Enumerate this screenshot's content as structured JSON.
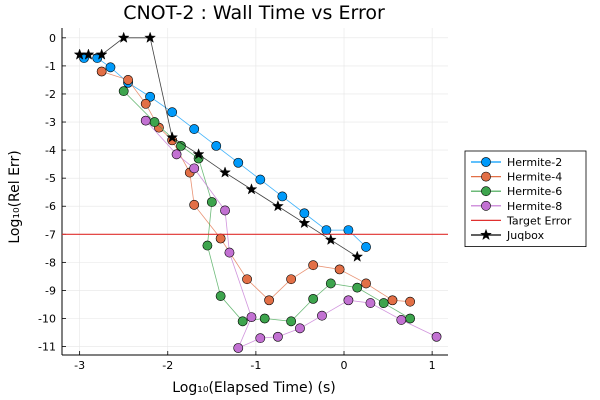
{
  "chart_data": {
    "type": "line",
    "title": "CNOT-2 : Wall Time vs Error",
    "xlabel": "Log₁₀(Elapsed Time) (s)",
    "ylabel": "Log₁₀(Rel Err)",
    "xlim": [
      -3.2,
      1.18
    ],
    "ylim": [
      -11.3,
      0.35
    ],
    "xticks": [
      -3,
      -2,
      -1,
      0,
      1
    ],
    "yticks": [
      0,
      -1,
      -2,
      -3,
      -4,
      -5,
      -6,
      -7,
      -8,
      -9,
      -10,
      -11
    ],
    "grid": true,
    "legend_position": "right",
    "series": [
      {
        "name": "Hermite-2",
        "color": "#009AFA",
        "marker": "circle",
        "points": [
          [
            -2.95,
            -0.72
          ],
          [
            -2.8,
            -0.72
          ],
          [
            -2.65,
            -1.05
          ],
          [
            -2.45,
            -1.6
          ],
          [
            -2.2,
            -2.1
          ],
          [
            -1.95,
            -2.65
          ],
          [
            -1.7,
            -3.25
          ],
          [
            -1.45,
            -3.85
          ],
          [
            -1.2,
            -4.45
          ],
          [
            -0.95,
            -5.05
          ],
          [
            -0.7,
            -5.65
          ],
          [
            -0.45,
            -6.25
          ],
          [
            -0.2,
            -6.85
          ],
          [
            0.05,
            -6.85
          ],
          [
            0.25,
            -7.45
          ]
        ]
      },
      {
        "name": "Hermite-4",
        "color": "#E26F46",
        "marker": "circle",
        "points": [
          [
            -2.75,
            -1.2
          ],
          [
            -2.45,
            -1.5
          ],
          [
            -2.25,
            -2.35
          ],
          [
            -2.1,
            -3.2
          ],
          [
            -1.95,
            -3.65
          ],
          [
            -1.75,
            -4.8
          ],
          [
            -1.7,
            -5.95
          ],
          [
            -1.4,
            -7.15
          ],
          [
            -1.1,
            -8.6
          ],
          [
            -0.85,
            -9.35
          ],
          [
            -0.6,
            -8.6
          ],
          [
            -0.35,
            -8.1
          ],
          [
            -0.05,
            -8.25
          ],
          [
            0.25,
            -8.75
          ],
          [
            0.55,
            -9.35
          ],
          [
            0.75,
            -9.4
          ]
        ]
      },
      {
        "name": "Hermite-6",
        "color": "#3DA44D",
        "marker": "circle",
        "points": [
          [
            -2.5,
            -1.9
          ],
          [
            -2.15,
            -3.0
          ],
          [
            -1.85,
            -3.85
          ],
          [
            -1.65,
            -4.3
          ],
          [
            -1.5,
            -5.85
          ],
          [
            -1.55,
            -7.4
          ],
          [
            -1.4,
            -9.2
          ],
          [
            -1.15,
            -10.1
          ],
          [
            -0.9,
            -10.0
          ],
          [
            -0.6,
            -10.1
          ],
          [
            -0.35,
            -9.3
          ],
          [
            -0.15,
            -8.75
          ],
          [
            0.15,
            -8.9
          ],
          [
            0.45,
            -9.45
          ],
          [
            0.75,
            -10.0
          ]
        ]
      },
      {
        "name": "Hermite-8",
        "color": "#C271D2",
        "marker": "circle",
        "points": [
          [
            -2.25,
            -2.95
          ],
          [
            -1.9,
            -4.15
          ],
          [
            -1.7,
            -4.65
          ],
          [
            -1.35,
            -6.15
          ],
          [
            -1.3,
            -7.65
          ],
          [
            -1.05,
            -9.95
          ],
          [
            -1.2,
            -11.05
          ],
          [
            -0.95,
            -10.7
          ],
          [
            -0.75,
            -10.65
          ],
          [
            -0.5,
            -10.35
          ],
          [
            -0.25,
            -9.9
          ],
          [
            0.05,
            -9.35
          ],
          [
            0.3,
            -9.45
          ],
          [
            0.65,
            -10.05
          ],
          [
            1.05,
            -10.65
          ]
        ]
      },
      {
        "name": "Target Error",
        "color": "#E0302F",
        "marker": "none",
        "points": [
          [
            -3.2,
            -7.0
          ],
          [
            1.18,
            -7.0
          ]
        ]
      },
      {
        "name": "Juqbox",
        "color": "#000000",
        "marker": "star",
        "points": [
          [
            -3.0,
            -0.6
          ],
          [
            -2.9,
            -0.6
          ],
          [
            -2.75,
            -0.6
          ],
          [
            -2.5,
            0.0
          ],
          [
            -2.2,
            0.0
          ],
          [
            -1.95,
            -3.55
          ],
          [
            -1.65,
            -4.15
          ],
          [
            -1.35,
            -4.8
          ],
          [
            -1.05,
            -5.4
          ],
          [
            -0.75,
            -6.0
          ],
          [
            -0.45,
            -6.6
          ],
          [
            -0.15,
            -7.2
          ],
          [
            0.15,
            -7.8
          ]
        ]
      }
    ]
  }
}
